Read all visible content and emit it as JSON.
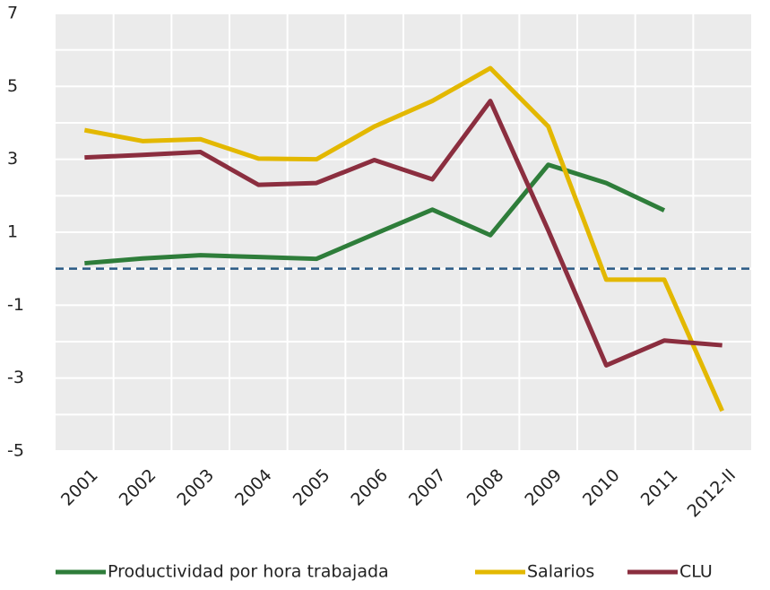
{
  "chart_data": {
    "type": "line",
    "categories": [
      "2001",
      "2002",
      "2003",
      "2004",
      "2005",
      "2006",
      "2007",
      "2008",
      "2009",
      "2010",
      "2011",
      "2012-II"
    ],
    "series": [
      {
        "name": "Productividad por hora trabajada",
        "color": "#2e7d3a",
        "values": [
          0.15,
          0.28,
          0.37,
          0.32,
          0.27,
          0.95,
          1.62,
          0.92,
          2.85,
          2.35,
          1.6,
          null
        ]
      },
      {
        "name": "Salarios",
        "color": "#e3b800",
        "values": [
          3.8,
          3.5,
          3.55,
          3.02,
          3.0,
          3.9,
          4.6,
          5.5,
          3.9,
          -0.3,
          -0.3,
          -3.9
        ]
      },
      {
        "name": "CLU",
        "color": "#8b2e3f",
        "values": [
          3.05,
          3.12,
          3.2,
          2.3,
          2.35,
          2.98,
          2.45,
          4.6,
          1.05,
          -2.65,
          -1.97,
          -2.1
        ]
      }
    ],
    "ylim": [
      -5,
      7
    ],
    "yticks": [
      -5,
      -3,
      -1,
      1,
      3,
      5,
      7
    ],
    "grid": true,
    "reference_line": {
      "value": 0,
      "color": "#2a5a85"
    },
    "legend": "bottom"
  }
}
